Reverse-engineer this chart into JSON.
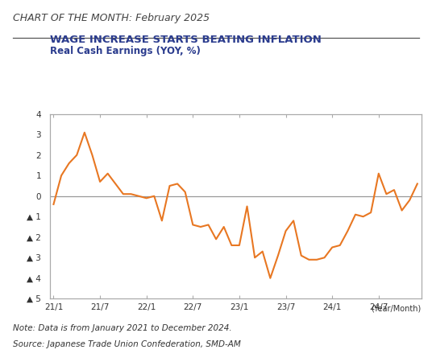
{
  "title_top": "CHART OF THE MONTH: February 2025",
  "title_main": "WAGE INCREASE STARTS BEATING INFLATION",
  "subtitle": "Real Cash Earnings (YOY, %)",
  "note": "Note: Data is from January 2021 to December 2024.",
  "source": "Source: Japanese Trade Union Confederation, SMD-AM",
  "xlabel": "(Year/Month)",
  "line_color": "#E87722",
  "line_width": 1.5,
  "ylim": [
    -5,
    4
  ],
  "yticks": [
    4,
    3,
    2,
    1,
    0,
    -1,
    -2,
    -3,
    -4,
    -5
  ],
  "ytick_labels": [
    "4",
    "3",
    "2",
    "1",
    "0",
    "▲ 1",
    "▲ 2",
    "▲ 3",
    "▲ 4",
    "▲ 5"
  ],
  "xtick_labels": [
    "21/1",
    "21/7",
    "22/1",
    "22/7",
    "23/1",
    "23/7",
    "24/1",
    "24/7"
  ],
  "xtick_positions": [
    0,
    6,
    12,
    18,
    24,
    30,
    36,
    42
  ],
  "background_color": "#ffffff",
  "title_top_color": "#444444",
  "title_main_color": "#2B3C8E",
  "subtitle_color": "#2B3C8E",
  "zero_line_color": "#999999",
  "spine_color": "#aaaaaa",
  "values": [
    -0.4,
    1.0,
    1.6,
    2.0,
    3.1,
    2.0,
    0.7,
    1.1,
    0.6,
    0.1,
    0.1,
    0.0,
    -0.1,
    0.0,
    -1.2,
    0.5,
    0.6,
    0.2,
    -1.4,
    -1.5,
    -1.4,
    -2.1,
    -1.5,
    -2.4,
    -2.4,
    -0.5,
    -3.0,
    -2.7,
    -4.0,
    -2.9,
    -1.7,
    -1.2,
    -2.9,
    -3.1,
    -3.1,
    -3.0,
    -2.5,
    -2.4,
    -1.7,
    -0.9,
    -1.0,
    -0.8,
    1.1,
    0.1,
    0.3,
    -0.7,
    -0.2,
    0.6
  ]
}
